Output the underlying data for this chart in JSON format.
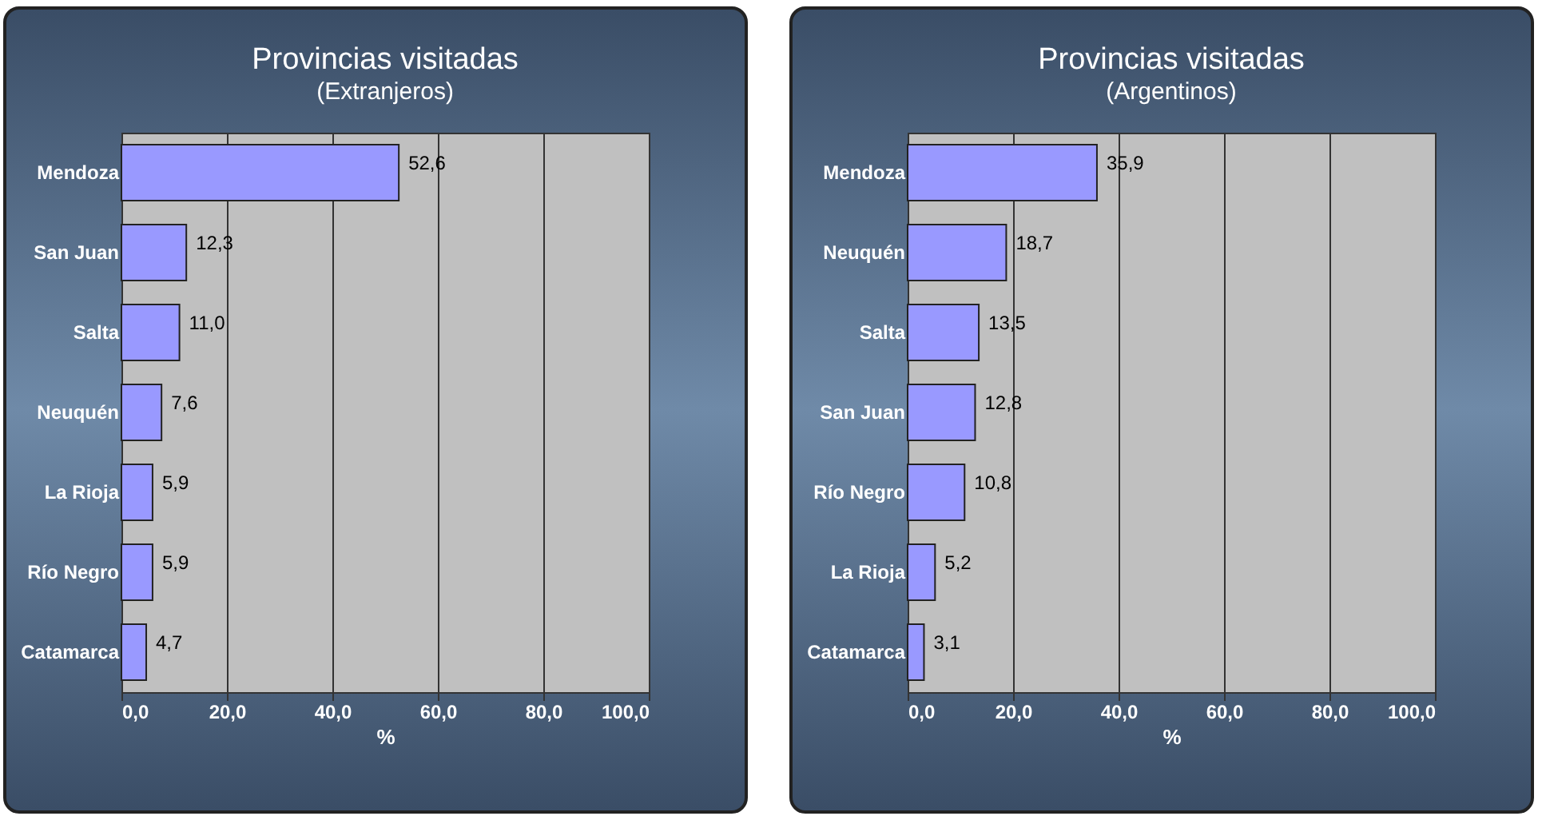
{
  "chart_data": [
    {
      "type": "bar",
      "orientation": "horizontal",
      "title": "Provincias visitadas",
      "subtitle": "(Extranjeros)",
      "xlabel": "%",
      "categories": [
        "Mendoza",
        "San Juan",
        "Salta",
        "Neuquén",
        "La Rioja",
        "Río Negro",
        "Catamarca"
      ],
      "values": [
        52.6,
        12.3,
        11.0,
        7.6,
        5.9,
        5.9,
        4.7
      ],
      "value_labels": [
        "52,6",
        "12,3",
        "11,0",
        "7,6",
        "5,9",
        "5,9",
        "4,7"
      ],
      "color": "#9999ff",
      "xlim": [
        0,
        100
      ],
      "xticks": [
        {
          "value": 0,
          "label": "0,0"
        },
        {
          "value": 20,
          "label": "20,0"
        },
        {
          "value": 40,
          "label": "40,0"
        },
        {
          "value": 60,
          "label": "60,0"
        },
        {
          "value": 80,
          "label": "80,0"
        },
        {
          "value": 100,
          "label": "100,0"
        }
      ],
      "grid": "x"
    },
    {
      "type": "bar",
      "orientation": "horizontal",
      "title": "Provincias visitadas",
      "subtitle": "(Argentinos)",
      "xlabel": "%",
      "categories": [
        "Mendoza",
        "Neuquén",
        "Salta",
        "San Juan",
        "Río Negro",
        "La Rioja",
        "Catamarca"
      ],
      "values": [
        35.9,
        18.7,
        13.5,
        12.8,
        10.8,
        5.2,
        3.1
      ],
      "value_labels": [
        "35,9",
        "18,7",
        "13,5",
        "12,8",
        "10,8",
        "5,2",
        "3,1"
      ],
      "color": "#9999ff",
      "xlim": [
        0,
        100
      ],
      "xticks": [
        {
          "value": 0,
          "label": "0,0"
        },
        {
          "value": 20,
          "label": "20,0"
        },
        {
          "value": 40,
          "label": "40,0"
        },
        {
          "value": 60,
          "label": "60,0"
        },
        {
          "value": 80,
          "label": "80,0"
        },
        {
          "value": 100,
          "label": "100,0"
        }
      ],
      "grid": "x"
    }
  ]
}
